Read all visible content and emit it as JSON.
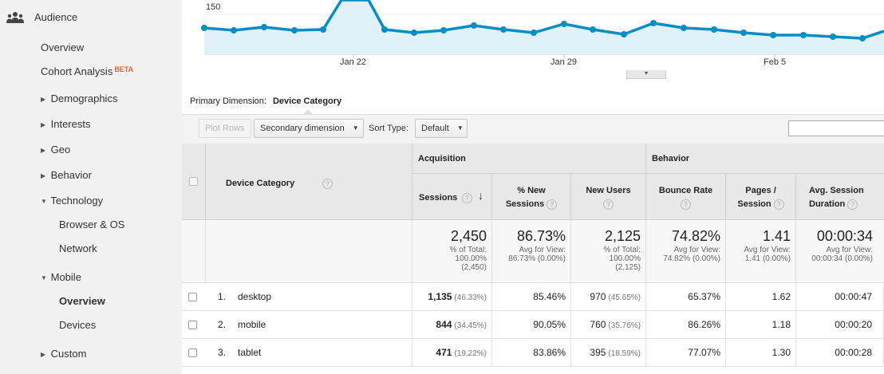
{
  "sidebar": {
    "section_label": "Audience",
    "section_icon": "audience-people-icon",
    "beta_label": "BETA",
    "items": {
      "overview": "Overview",
      "cohort": "Cohort Analysis",
      "demographics": "Demographics",
      "interests": "Interests",
      "geo": "Geo",
      "behavior": "Behavior",
      "technology": "Technology",
      "browser_os": "Browser & OS",
      "network": "Network",
      "mobile": "Mobile",
      "mobile_overview": "Overview",
      "devices": "Devices",
      "custom": "Custom"
    }
  },
  "chart": {
    "y_tick": "150",
    "x_ticks": [
      "Jan 22",
      "Jan 29",
      "Feb 5"
    ],
    "line_color": "#058dc7",
    "fill_color": "#e1f1f9"
  },
  "primary_dimension": {
    "label": "Primary Dimension:",
    "value": "Device Category"
  },
  "toolbar": {
    "plot_rows": "Plot Rows",
    "secondary_dimension": "Secondary dimension",
    "sort_type_label": "Sort Type:",
    "sort_type_value": "Default",
    "search_value": ""
  },
  "table": {
    "dimension_header": "Device Category",
    "groups": {
      "acquisition": "Acquisition",
      "behavior": "Behavior"
    },
    "columns": {
      "sessions": "Sessions",
      "new_sessions_1": "% New",
      "new_sessions_2": "Sessions",
      "new_users": "New Users",
      "bounce_rate": "Bounce Rate",
      "pages_1": "Pages /",
      "pages_2": "Session",
      "duration_1": "Avg. Session",
      "duration_2": "Duration"
    },
    "totals": {
      "sessions": {
        "value": "2,450",
        "sub1": "% of Total:",
        "sub2": "100.00%",
        "sub3": "(2,450)"
      },
      "new_sessions": {
        "value": "86.73%",
        "sub1": "Avg for View:",
        "sub2": "86.73% (0.00%)"
      },
      "new_users": {
        "value": "2,125",
        "sub1": "% of Total:",
        "sub2": "100.00%",
        "sub3": "(2,125)"
      },
      "bounce_rate": {
        "value": "74.82%",
        "sub1": "Avg for View:",
        "sub2": "74.82% (0.00%)"
      },
      "pages": {
        "value": "1.41",
        "sub1": "Avg for View:",
        "sub2": "1.41 (0.00%)"
      },
      "duration": {
        "value": "00:00:34",
        "sub1": "Avg for View:",
        "sub2": "00:00:34 (0.00%)"
      }
    },
    "rows": [
      {
        "num": "1.",
        "device": "desktop",
        "sessions": "1,135",
        "sessions_pct": "(46.33%)",
        "new_sessions": "85.46%",
        "new_users": "970",
        "new_users_pct": "(45.65%)",
        "bounce_rate": "65.37%",
        "pages": "1.62",
        "duration": "00:00:47"
      },
      {
        "num": "2.",
        "device": "mobile",
        "sessions": "844",
        "sessions_pct": "(34.45%)",
        "new_sessions": "90.05%",
        "new_users": "760",
        "new_users_pct": "(35.76%)",
        "bounce_rate": "86.26%",
        "pages": "1.18",
        "duration": "00:00:20"
      },
      {
        "num": "3.",
        "device": "tablet",
        "sessions": "471",
        "sessions_pct": "(19.22%)",
        "new_sessions": "83.86%",
        "new_users": "395",
        "new_users_pct": "(18.59%)",
        "bounce_rate": "77.07%",
        "pages": "1.30",
        "duration": "00:00:28"
      }
    ]
  }
}
